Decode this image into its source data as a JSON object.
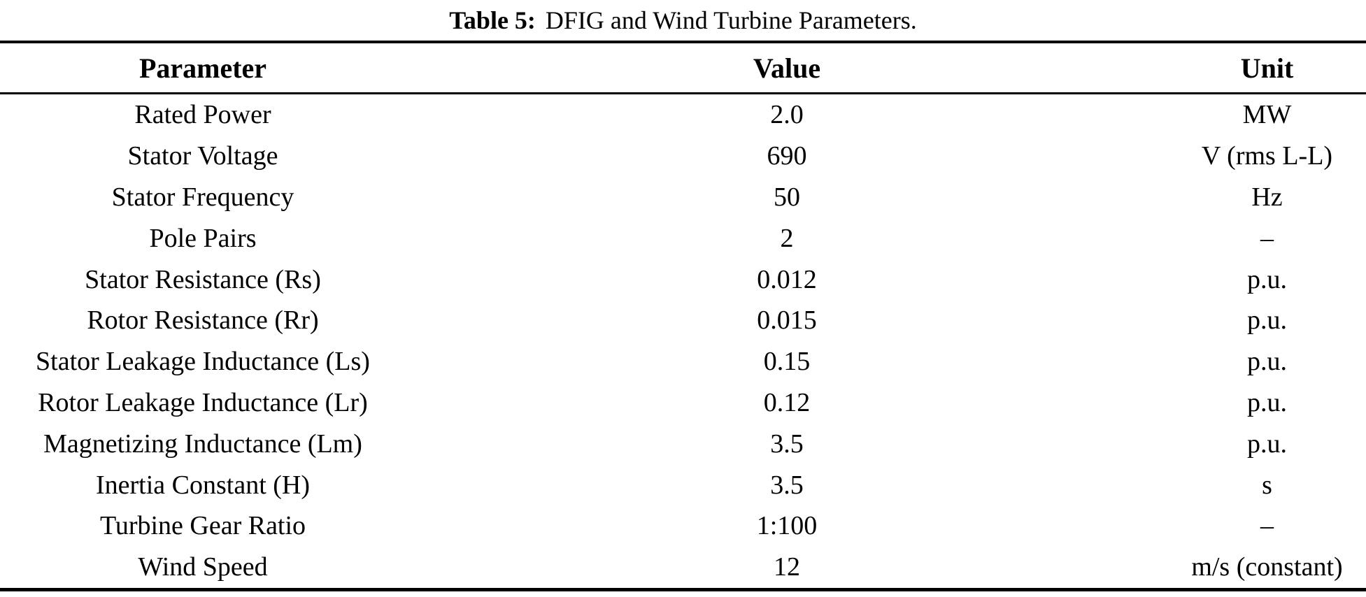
{
  "table": {
    "caption": {
      "label": "Table 5:",
      "text": "DFIG and Wind Turbine Parameters."
    },
    "columns": [
      "Parameter",
      "Value",
      "Unit"
    ],
    "rows": [
      {
        "parameter": "Rated Power",
        "value": "2.0",
        "unit": "MW"
      },
      {
        "parameter": "Stator Voltage",
        "value": "690",
        "unit": "V (rms L-L)"
      },
      {
        "parameter": "Stator Frequency",
        "value": "50",
        "unit": "Hz"
      },
      {
        "parameter": "Pole Pairs",
        "value": "2",
        "unit": "–"
      },
      {
        "parameter": "Stator Resistance (Rs)",
        "value": "0.012",
        "unit": "p.u."
      },
      {
        "parameter": "Rotor Resistance (Rr)",
        "value": "0.015",
        "unit": "p.u."
      },
      {
        "parameter": "Stator Leakage Inductance (Ls)",
        "value": "0.15",
        "unit": "p.u."
      },
      {
        "parameter": "Rotor Leakage Inductance (Lr)",
        "value": "0.12",
        "unit": "p.u."
      },
      {
        "parameter": "Magnetizing Inductance (Lm)",
        "value": "3.5",
        "unit": "p.u."
      },
      {
        "parameter": "Inertia Constant (H)",
        "value": "3.5",
        "unit": "s"
      },
      {
        "parameter": "Turbine Gear Ratio",
        "value": "1:100",
        "unit": "–"
      },
      {
        "parameter": "Wind Speed",
        "value": "12",
        "unit": "m/s (constant)"
      }
    ],
    "text_color": "#000000",
    "background_color": "#ffffff"
  }
}
